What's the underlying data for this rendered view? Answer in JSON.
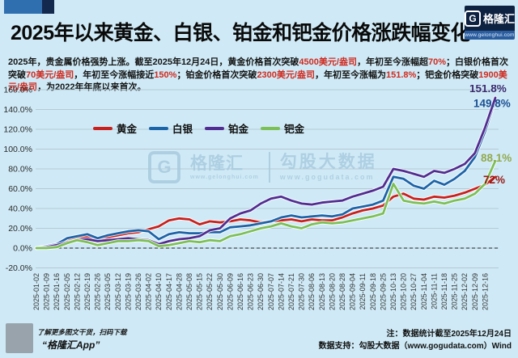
{
  "page": {
    "background": "#cfeaf6",
    "accent_blue": "#2f6fb0",
    "accent_navy": "#13294d"
  },
  "header": {
    "title": "2025年以来黄金、白银、铂金和钯金价格涨跌幅变化",
    "logo": {
      "g": "G",
      "name": "格隆汇",
      "url": "www.gelonghui.com"
    }
  },
  "intro": {
    "segments": [
      {
        "t": "2025年，贵金属价格强势上涨。截至2025年12月24日，黄金价格首次突破",
        "c": "k"
      },
      {
        "t": "4500美元/盎司",
        "c": "r"
      },
      {
        "t": "，年初至今涨幅超",
        "c": "k"
      },
      {
        "t": "70%",
        "c": "r"
      },
      {
        "t": "；白银价格首次突破",
        "c": "k"
      },
      {
        "t": "70美元/盎司",
        "c": "r"
      },
      {
        "t": "，年初至今涨幅接近",
        "c": "k"
      },
      {
        "t": "150%",
        "c": "r"
      },
      {
        "t": "；铂金价格首次突破",
        "c": "k"
      },
      {
        "t": "2300美元/盎司",
        "c": "r"
      },
      {
        "t": "，年初至今涨幅为",
        "c": "k"
      },
      {
        "t": "151.8%",
        "c": "r"
      },
      {
        "t": "；钯金价格突破",
        "c": "k"
      },
      {
        "t": "1900美元/盎司",
        "c": "r"
      },
      {
        "t": "，为2022年年底以来首次。",
        "c": "k"
      }
    ]
  },
  "watermark": {
    "logo_g": "G",
    "logo_name": "格隆汇",
    "logo_url": "www.gelonghui.com",
    "partner": "勾股大数据",
    "partner_url": "www.gogudata.com"
  },
  "chart_data": {
    "type": "line",
    "title": "2025年以来黄金、白银、铂金和钯金价格涨跌幅变化",
    "ylim": [
      -20,
      160
    ],
    "ytick_step": 20,
    "ytick_suffix": "%",
    "grid": true,
    "legend_position": "top-inside",
    "zero_line": "dashed-black",
    "x_labels": [
      "2025-01-02",
      "2025-01-09",
      "2025-01-16",
      "2025-02-05",
      "2025-02-12",
      "2025-02-19",
      "2025-02-26",
      "2025-03-05",
      "2025-03-12",
      "2025-03-19",
      "2025-03-26",
      "2025-04-02",
      "2025-04-10",
      "2025-04-17",
      "2025-04-28",
      "2025-05-08",
      "2025-05-15",
      "2025-05-22",
      "2025-05-30",
      "2025-06-09",
      "2025-06-16",
      "2025-06-23",
      "2025-06-30",
      "2025-07-07",
      "2025-07-14",
      "2025-07-21",
      "2025-07-30",
      "2025-08-06",
      "2025-08-13",
      "2025-08-20",
      "2025-08-28",
      "2025-09-04",
      "2025-09-11",
      "2025-09-18",
      "2025-09-25",
      "2025-10-13",
      "2025-10-20",
      "2025-10-27",
      "2025-11-04",
      "2025-11-11",
      "2025-11-18",
      "2025-11-25",
      "2025-12-02",
      "2025-12-09",
      "2025-12-16"
    ],
    "x_end": "2025-12-24",
    "series": [
      {
        "name": "黄金",
        "color": "#c8201d",
        "label_color": "#9a1a15",
        "end_label": "72%",
        "values": [
          0,
          1,
          3,
          7,
          10,
          11,
          10,
          11,
          13,
          15,
          16,
          19,
          22,
          28,
          30,
          29,
          24,
          27,
          26,
          27,
          29,
          28,
          26,
          27,
          28,
          29,
          27,
          29,
          28,
          28,
          31,
          35,
          38,
          40,
          43,
          52,
          55,
          50,
          49,
          52,
          51,
          53,
          56,
          60,
          64,
          72
        ]
      },
      {
        "name": "白银",
        "color": "#1c63a8",
        "label_color": "#1c4f93",
        "end_label": "149.8%",
        "values": [
          0,
          2,
          4,
          10,
          12,
          14,
          10,
          13,
          15,
          17,
          18,
          17,
          9,
          14,
          16,
          15,
          15,
          16,
          16,
          21,
          22,
          23,
          25,
          27,
          31,
          33,
          31,
          32,
          33,
          32,
          34,
          40,
          42,
          44,
          48,
          72,
          70,
          63,
          60,
          68,
          64,
          70,
          78,
          92,
          118,
          149.8
        ]
      },
      {
        "name": "铂金",
        "color": "#522d91",
        "label_color": "#3c2a6e",
        "end_label": "151.8%",
        "values": [
          0,
          1,
          3,
          6,
          8,
          9,
          7,
          8,
          9,
          10,
          9,
          8,
          4,
          7,
          9,
          10,
          12,
          18,
          20,
          30,
          35,
          38,
          45,
          50,
          52,
          48,
          45,
          44,
          46,
          47,
          48,
          52,
          55,
          58,
          62,
          80,
          78,
          75,
          72,
          78,
          76,
          80,
          85,
          96,
          122,
          151.8
        ]
      },
      {
        "name": "钯金",
        "color": "#7cbf57",
        "label_color": "#93a94e",
        "end_label": "88.1%",
        "values": [
          0,
          0,
          1,
          5,
          8,
          6,
          3,
          5,
          7,
          7,
          8,
          7,
          2,
          3,
          5,
          7,
          6,
          8,
          7,
          12,
          14,
          17,
          20,
          22,
          25,
          22,
          20,
          24,
          26,
          25,
          26,
          28,
          30,
          32,
          35,
          65,
          48,
          46,
          45,
          47,
          45,
          48,
          50,
          55,
          65,
          88.1
        ]
      }
    ]
  },
  "footer": {
    "qr_hint": "了解更多图文干货，扫码下载",
    "app_name": "“格隆汇App”",
    "note": "注：数据统计截至2025年12月24日",
    "support": "数据支持：勾股大数据（www.gogudata.com）Wind"
  }
}
